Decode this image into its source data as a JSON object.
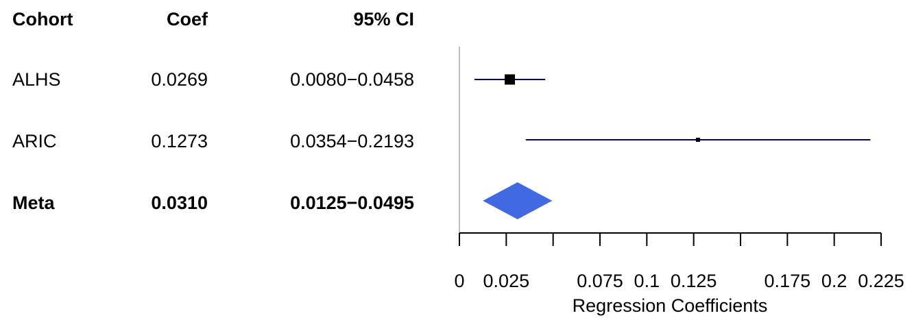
{
  "table": {
    "headers": {
      "cohort": "Cohort",
      "coef": "Coef",
      "ci": "95% CI"
    },
    "rows": [
      {
        "cohort": "ALHS",
        "coef": "0.0269",
        "ci": "0.0080−0.0458"
      },
      {
        "cohort": "ARIC",
        "coef": "0.1273",
        "ci": "0.0354−0.2193"
      },
      {
        "cohort": "Meta",
        "coef": "0.0310",
        "ci": "0.0125−0.0495"
      }
    ]
  },
  "chart_data": {
    "type": "forest",
    "xlabel": "Regression Coefficients",
    "xlim": [
      0,
      0.225
    ],
    "xticks": [
      0,
      0.025,
      0.05,
      0.075,
      0.1,
      0.125,
      0.15,
      0.175,
      0.2,
      0.225
    ],
    "xtick_labels": [
      "0",
      "0.025",
      "",
      "0.075",
      "0.1",
      "0.125",
      "",
      "0.175",
      "0.2",
      "0.225"
    ],
    "studies": [
      {
        "name": "ALHS",
        "estimate": 0.0269,
        "lower": 0.008,
        "upper": 0.0458,
        "weight": 1.0
      },
      {
        "name": "ARIC",
        "estimate": 0.1273,
        "lower": 0.0354,
        "upper": 0.2193,
        "weight": 0.05
      }
    ],
    "summary": {
      "name": "Meta",
      "estimate": 0.031,
      "lower": 0.0125,
      "upper": 0.0495
    },
    "colors": {
      "ci_line": "#000066",
      "marker": "#000000",
      "summary": "#4169E1",
      "reference_line": "#bebebe"
    }
  }
}
